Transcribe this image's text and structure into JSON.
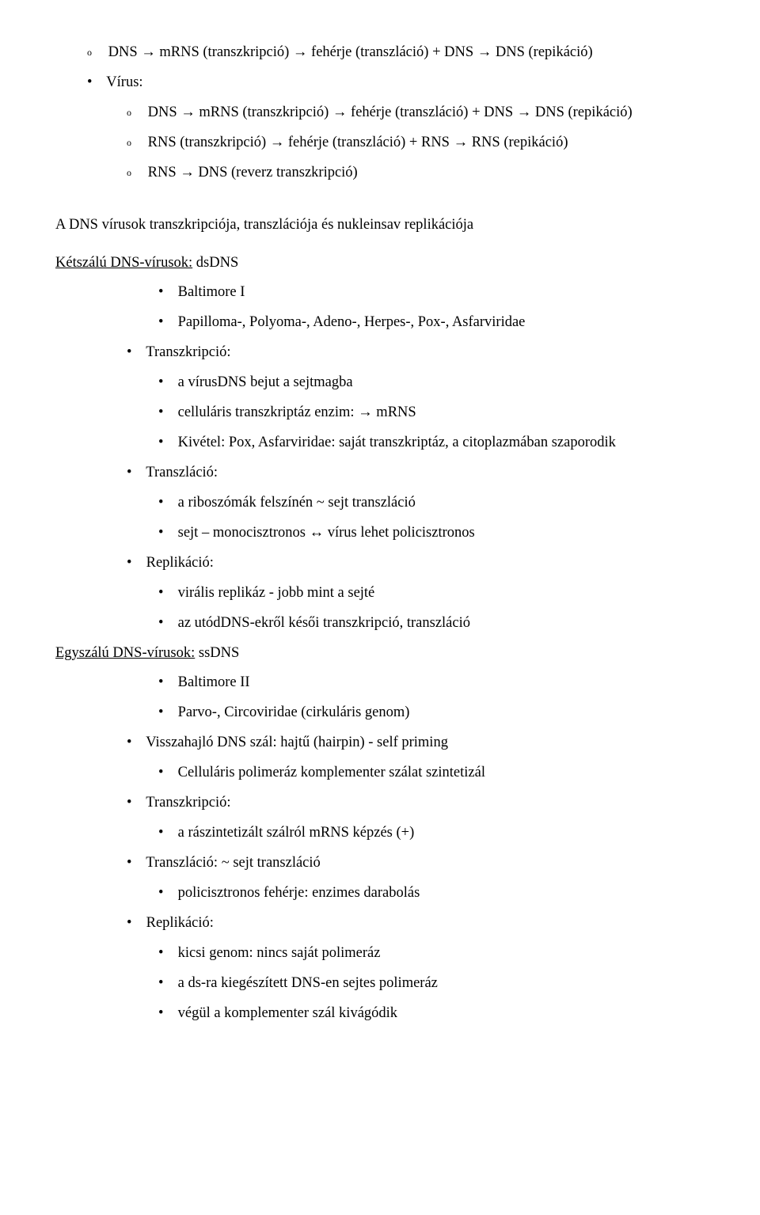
{
  "background_color": "#ffffff",
  "text_color": "#000000",
  "font_family": "Times New Roman",
  "base_font_size_pt": 14,
  "line_height": 2.05,
  "top": {
    "line0_prefix": "o",
    "line0": "DNS → mRNS (transzkripció) → fehérje (transzláció) + DNS → DNS (repikáció)",
    "virus_label": "Vírus:",
    "sub": [
      {
        "prefix": "o",
        "text": "DNS → mRNS (transzkripció) → fehérje (transzláció) + DNS → DNS (repikáció)"
      },
      {
        "prefix": "o",
        "text": "RNS (transzkripció) → fehérje (transzláció) + RNS → RNS (repikáció)"
      },
      {
        "prefix": "o",
        "text": "RNS → DNS (reverz transzkripció)"
      }
    ]
  },
  "section_title": "A DNS vírusok transzkripciója, transzlációja és nukleinsav replikációja",
  "dsdns": {
    "heading_prefix": "Kétszálú DNS-vírusok:",
    "heading_suffix": " dsDNS",
    "items1": [
      "Baltimore I",
      "Papilloma-, Polyoma-, Adeno-, Herpes-, Pox-, Asfarviridae"
    ],
    "transzkripcio_label": "Transzkripció:",
    "transzkripcio_items": [
      "a vírusDNS bejut a sejtmagba",
      "celluláris transzkriptáz enzim: → mRNS",
      "Kivétel: Pox, Asfarviridae: saját transzkriptáz, a citoplazmában szaporodik"
    ],
    "transzlacio_label": "Transzláció:",
    "transzlacio_items": [
      "a riboszómák felszínén ~ sejt transzláció",
      "sejt – monocisztronos ↔ vírus lehet policisztronos"
    ],
    "replikacio_label": "Replikáció:",
    "replikacio_items": [
      "virális replikáz - jobb mint a sejté",
      "az utódDNS-ekről késői transzkripció, transzláció"
    ]
  },
  "ssdns": {
    "heading_prefix": "Egyszálú DNS-vírusok:",
    "heading_suffix": " ssDNS",
    "items1": [
      "Baltimore II",
      "Parvo-, Circoviridae (cirkuláris genom)"
    ],
    "hairpin_label": "Visszahajló DNS szál: hajtű (hairpin) - self priming",
    "hairpin_items": [
      "Celluláris polimeráz komplementer szálat szintetizál"
    ],
    "transzkripcio_label": "Transzkripció:",
    "transzkripcio_items": [
      "a rászintetizált szálról mRNS képzés (+)"
    ],
    "transzlacio_label": "Transzláció: ~ sejt transzláció",
    "transzlacio_items": [
      "policisztronos fehérje: enzimes darabolás"
    ],
    "replikacio_label": "Replikáció:",
    "replikacio_items": [
      "kicsi genom: nincs saját polimeráz",
      "a ds-ra kiegészített DNS-en sejtes polimeráz",
      "végül a komplementer szál kivágódik"
    ]
  }
}
